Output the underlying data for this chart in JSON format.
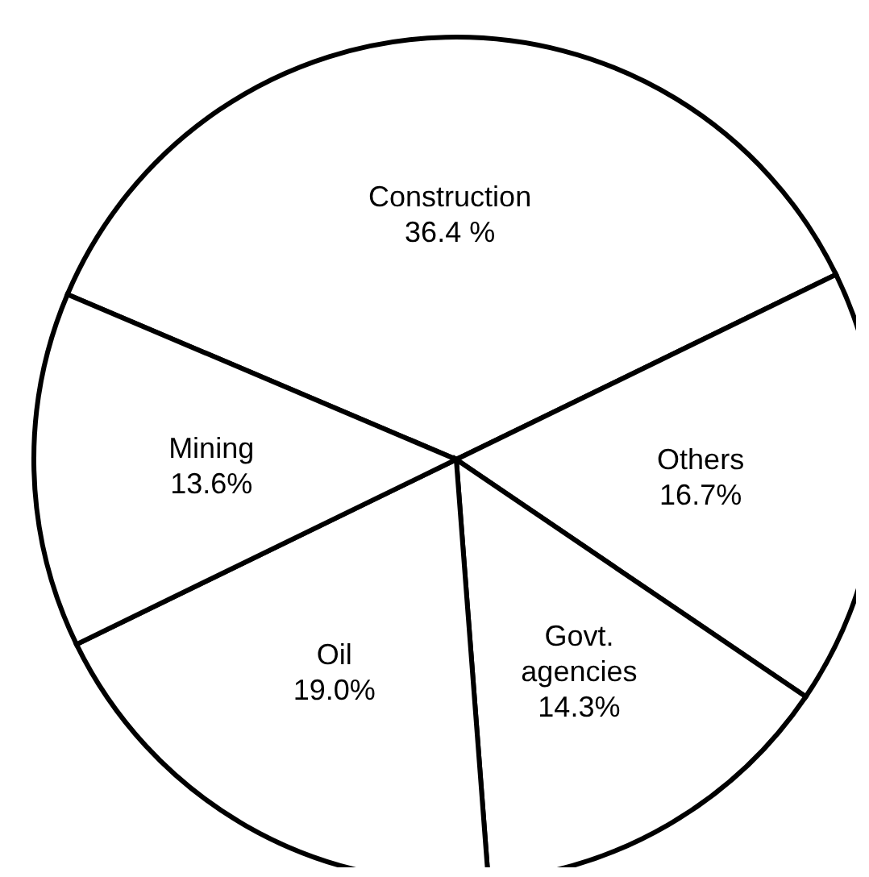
{
  "chart_data": {
    "type": "pie",
    "categories": [
      "Construction",
      "Others",
      "Govt. agencies",
      "Oil",
      "Mining"
    ],
    "values": [
      36.4,
      16.7,
      14.3,
      19.0,
      13.6
    ],
    "value_labels": [
      "36.4 %",
      "16.7%",
      "14.3%",
      "19.0%",
      "13.6%"
    ],
    "colors": [
      "#ffffff",
      "#ffffff",
      "#ffffff",
      "#ffffff",
      "#ffffff"
    ],
    "legend": false
  }
}
